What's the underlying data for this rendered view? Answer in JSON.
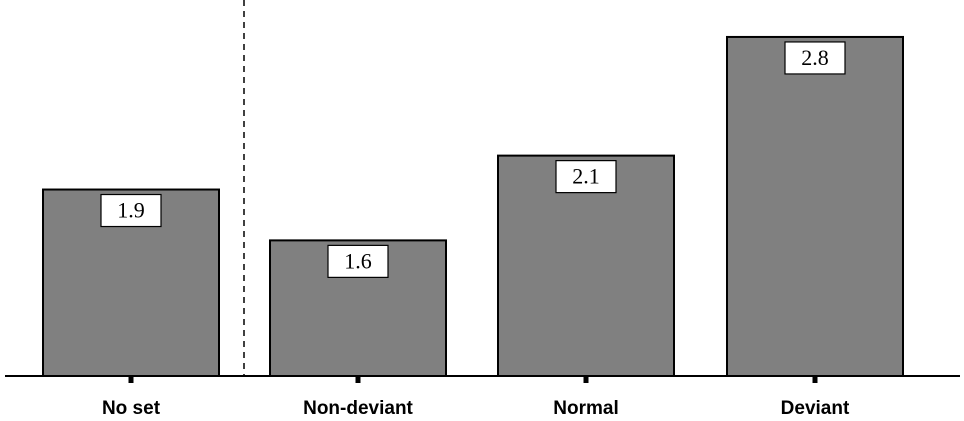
{
  "chart_data": {
    "type": "bar",
    "categories": [
      "No set",
      "Non-deviant",
      "Normal",
      "Deviant"
    ],
    "values": [
      1.9,
      1.6,
      2.1,
      2.8
    ],
    "value_labels": [
      "1.9",
      "1.6",
      "2.1",
      "2.8"
    ],
    "title": "",
    "xlabel": "",
    "ylabel": "",
    "ylim": [
      0.8,
      2.9
    ],
    "grid": false,
    "bar_color": "#808080",
    "separator": "dashed vertical line between first and second bar"
  }
}
